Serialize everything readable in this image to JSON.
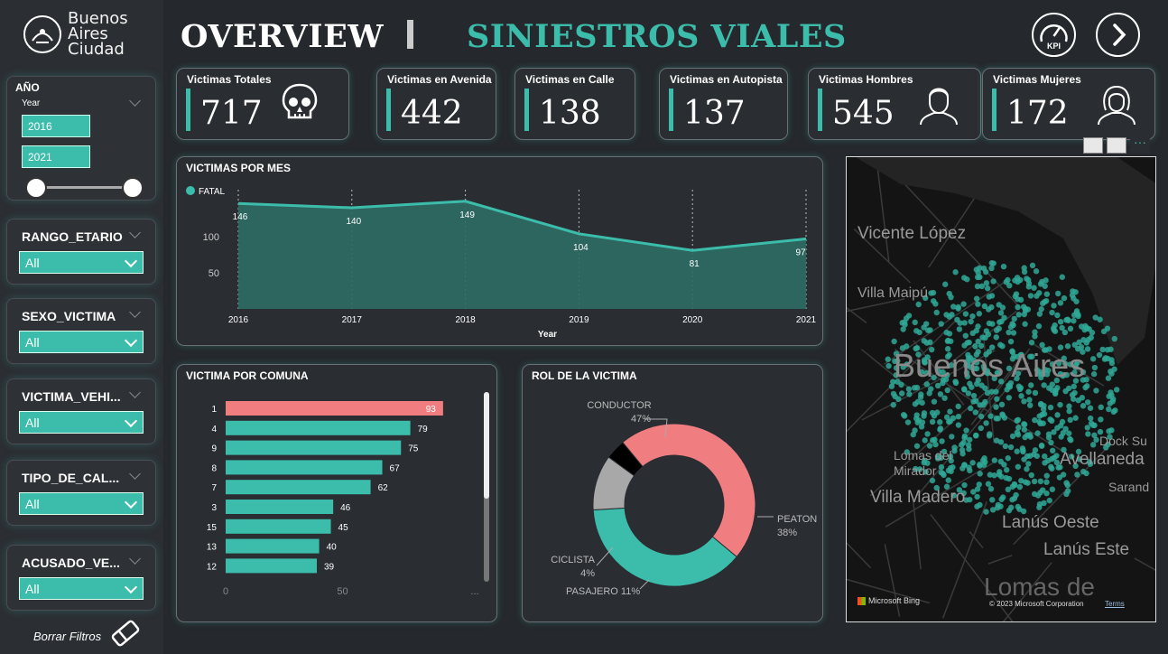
{
  "header": {
    "logo_line1": "Buenos",
    "logo_line2": "Aires",
    "logo_line3": "Ciudad",
    "title": "OVERVIEW",
    "subtitle": "SINIESTROS VIALES",
    "kpi_button_label": "KPI"
  },
  "filters": {
    "year": {
      "title": "AÑO",
      "sub": "Year",
      "from": "2016",
      "to": "2021"
    },
    "dropdowns": [
      {
        "title": "RANGO_ETARIO",
        "value": "All"
      },
      {
        "title": "SEXO_VICTIMA",
        "value": "All"
      },
      {
        "title": "VICTIMA_VEHI...",
        "value": "All"
      },
      {
        "title": "TIPO_DE_CAL...",
        "value": "All"
      },
      {
        "title": "ACUSADO_VE...",
        "value": "All"
      }
    ],
    "clear_label": "Borrar Filtros"
  },
  "cards": [
    {
      "label": "Victimas Totales",
      "value": "717",
      "icon": "skull-icon"
    },
    {
      "label": "Victimas en Avenida",
      "value": "442"
    },
    {
      "label": "Victimas en Calle",
      "value": "138"
    },
    {
      "label": "Victimas en Autopista",
      "value": "137"
    },
    {
      "label": "Victimas Hombres",
      "value": "545",
      "icon": "man-icon"
    },
    {
      "label": "Victimas Mujeres",
      "value": "172",
      "icon": "woman-icon"
    }
  ],
  "chart_data": [
    {
      "type": "area",
      "title": "VICTIMAS POR MES",
      "xlabel": "Year",
      "ylabel": "",
      "legend": "FATAL",
      "x": [
        "2016",
        "2017",
        "2018",
        "2019",
        "2020",
        "2021"
      ],
      "values": [
        146,
        140,
        149,
        104,
        81,
        97
      ],
      "yticks": [
        "50",
        "100"
      ],
      "ylim": [
        0,
        160
      ],
      "color": "#3cbdab"
    },
    {
      "type": "bar",
      "title": "VICTIMA POR COMUNA",
      "ylabel": "COMUNA",
      "categories": [
        "1",
        "4",
        "9",
        "8",
        "7",
        "3",
        "15",
        "13",
        "12"
      ],
      "values": [
        93,
        79,
        75,
        67,
        62,
        46,
        45,
        40,
        39
      ],
      "xticks": [
        "0",
        "50"
      ],
      "more_label": "...",
      "xlim": [
        0,
        100
      ],
      "highlight_color": "#f07e80",
      "color": "#3cbdab"
    },
    {
      "type": "pie",
      "title": "ROL DE LA VICTIMA",
      "slices": [
        {
          "label": "CONDUCTOR",
          "pct_label": "47%",
          "value": 47,
          "color": "#f07e80"
        },
        {
          "label": "PEATON",
          "pct_label": "38%",
          "value": 38,
          "color": "#3cbdab"
        },
        {
          "label": "PASAJERO",
          "pct_label": "11%",
          "value": 11,
          "color": "#a8a8a8"
        },
        {
          "label": "CICLISTA",
          "pct_label": "4%",
          "value": 4,
          "color": "#000000"
        }
      ]
    }
  ],
  "map": {
    "labels": [
      "Vicente López",
      "Villa Maipú",
      "Buenos Aires",
      "Lomas del Mirador",
      "Villa Madero",
      "Lanús Oeste",
      "Lanús Este",
      "Avellaneda",
      "Dock Su",
      "Sarand",
      "Lomas de"
    ],
    "attribution": "© 2023 Microsoft Corporation",
    "terms": "Terms",
    "bing": "Microsoft Bing"
  }
}
